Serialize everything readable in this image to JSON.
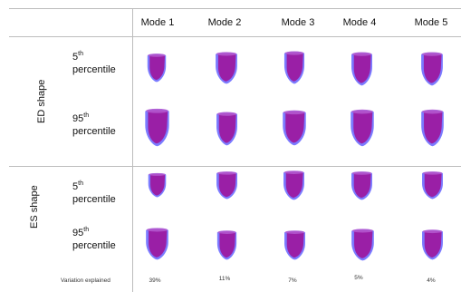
{
  "header": {
    "modes": [
      "Mode 1",
      "Mode 2",
      "Mode 3",
      "Mode 4",
      "Mode 5"
    ]
  },
  "groups": {
    "ed": "ED shape",
    "es": "ES shape"
  },
  "rows": [
    {
      "pct": "5",
      "sup": "th",
      "word": "percentile"
    },
    {
      "pct": "95",
      "sup": "th",
      "word": "percentile"
    },
    {
      "pct": "5",
      "sup": "th",
      "word": "percentile"
    },
    {
      "pct": "95",
      "sup": "th",
      "word": "percentile"
    }
  ],
  "variation": {
    "label": "Variation explained",
    "values": [
      "39%",
      "11%",
      "7%",
      "5%",
      "4%"
    ]
  },
  "colors": {
    "outer": "#7b7bff",
    "inner": "#9a1fa6",
    "rim": "#b45ad0",
    "grid": "#bdbdbd"
  },
  "icons": [
    "ventricle-shape-icon"
  ]
}
